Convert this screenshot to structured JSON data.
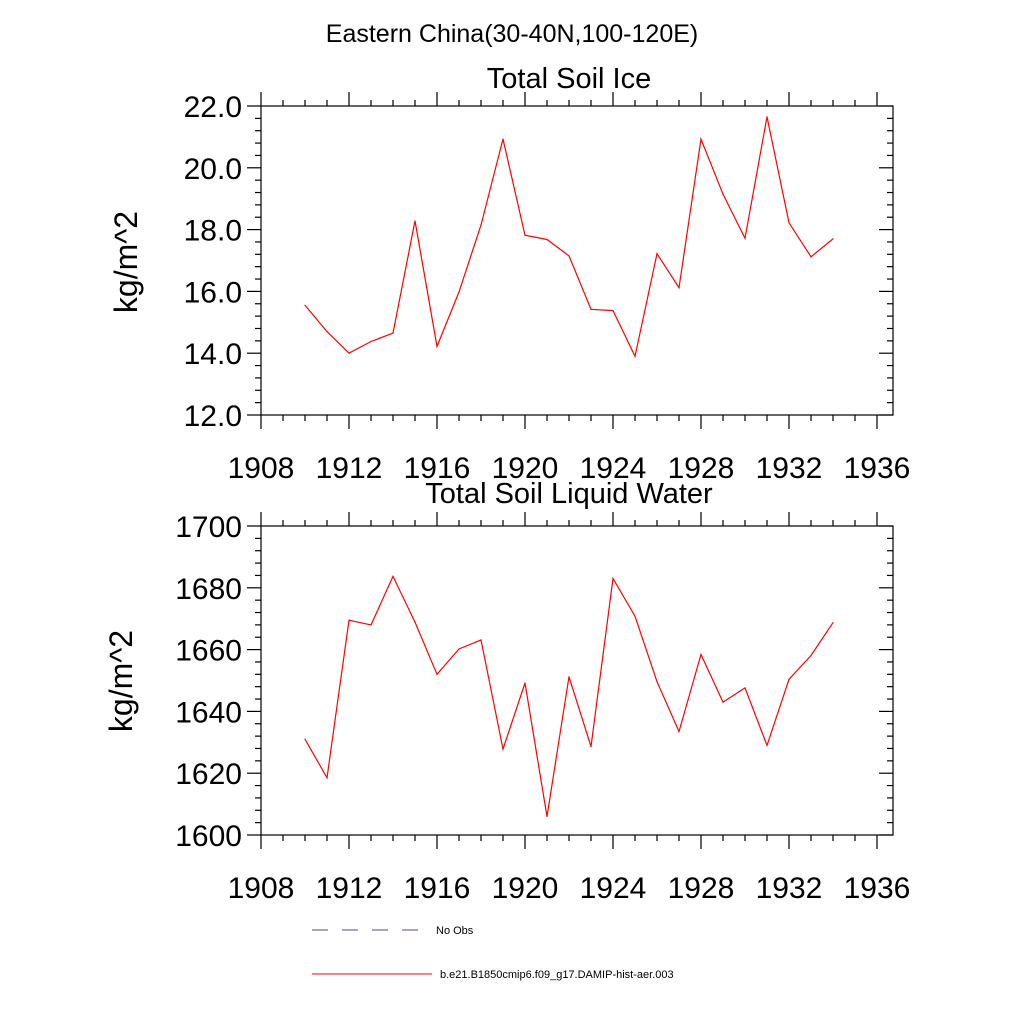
{
  "figure": {
    "title": "Eastern China(30-40N,100-120E)"
  },
  "chart_data": [
    {
      "type": "line",
      "title": "Total Soil Ice",
      "xlabel": "",
      "ylabel": "kg/m^2",
      "xlim": [
        1908,
        1936
      ],
      "ylim": [
        12,
        22
      ],
      "x_ticks": [
        "1908",
        "1912",
        "1916",
        "1920",
        "1924",
        "1928",
        "1932",
        "1936"
      ],
      "y_ticks": [
        "12.0",
        "14.0",
        "16.0",
        "18.0",
        "20.0",
        "22.0"
      ],
      "grid": false,
      "x": [
        1910,
        1911,
        1912,
        1913,
        1914,
        1915,
        1916,
        1917,
        1918,
        1919,
        1920,
        1921,
        1922,
        1923,
        1924,
        1925,
        1926,
        1927,
        1928,
        1929,
        1930,
        1931,
        1932,
        1933,
        1934
      ],
      "series": [
        {
          "name": "b.e21.B1850cmip6.f09_g17.DAMIP-hist-aer.003",
          "color": "#ff0000",
          "values": [
            15.55,
            14.7,
            14.0,
            14.38,
            14.65,
            18.28,
            14.22,
            15.98,
            18.15,
            20.93,
            17.82,
            17.68,
            17.15,
            15.42,
            15.38,
            13.9,
            17.22,
            16.12,
            20.93,
            19.15,
            17.72,
            21.65,
            18.22,
            17.12,
            17.7
          ]
        }
      ]
    },
    {
      "type": "line",
      "title": "Total Soil Liquid Water",
      "xlabel": "",
      "ylabel": "kg/m^2",
      "xlim": [
        1908,
        1936
      ],
      "ylim": [
        1600,
        1700
      ],
      "x_ticks": [
        "1908",
        "1912",
        "1916",
        "1920",
        "1924",
        "1928",
        "1932",
        "1936"
      ],
      "y_ticks": [
        "1600",
        "1620",
        "1640",
        "1660",
        "1680",
        "1700"
      ],
      "grid": false,
      "x": [
        1910,
        1911,
        1912,
        1913,
        1914,
        1915,
        1916,
        1917,
        1918,
        1919,
        1920,
        1921,
        1922,
        1923,
        1924,
        1925,
        1926,
        1927,
        1928,
        1929,
        1930,
        1931,
        1932,
        1933,
        1934
      ],
      "series": [
        {
          "name": "b.e21.B1850cmip6.f09_g17.DAMIP-hist-aer.003",
          "color": "#ff0000",
          "values": [
            1631,
            1618.5,
            1669.5,
            1668,
            1683.7,
            1668.9,
            1652,
            1660.2,
            1663.1,
            1627.8,
            1649.2,
            1606,
            1651.2,
            1628.6,
            1683,
            1670.8,
            1649.6,
            1633.5,
            1658.4,
            1643,
            1647.6,
            1629,
            1650.4,
            1658.1,
            1668.7
          ]
        }
      ]
    }
  ],
  "legend": {
    "placement": "bottom",
    "items": [
      {
        "label": "No Obs",
        "color": "#4a4a9a",
        "style": "dashed"
      },
      {
        "label": "b.e21.B1850cmip6.f09_g17.DAMIP-hist-aer.003",
        "color": "#ff0000",
        "style": "solid"
      }
    ]
  }
}
